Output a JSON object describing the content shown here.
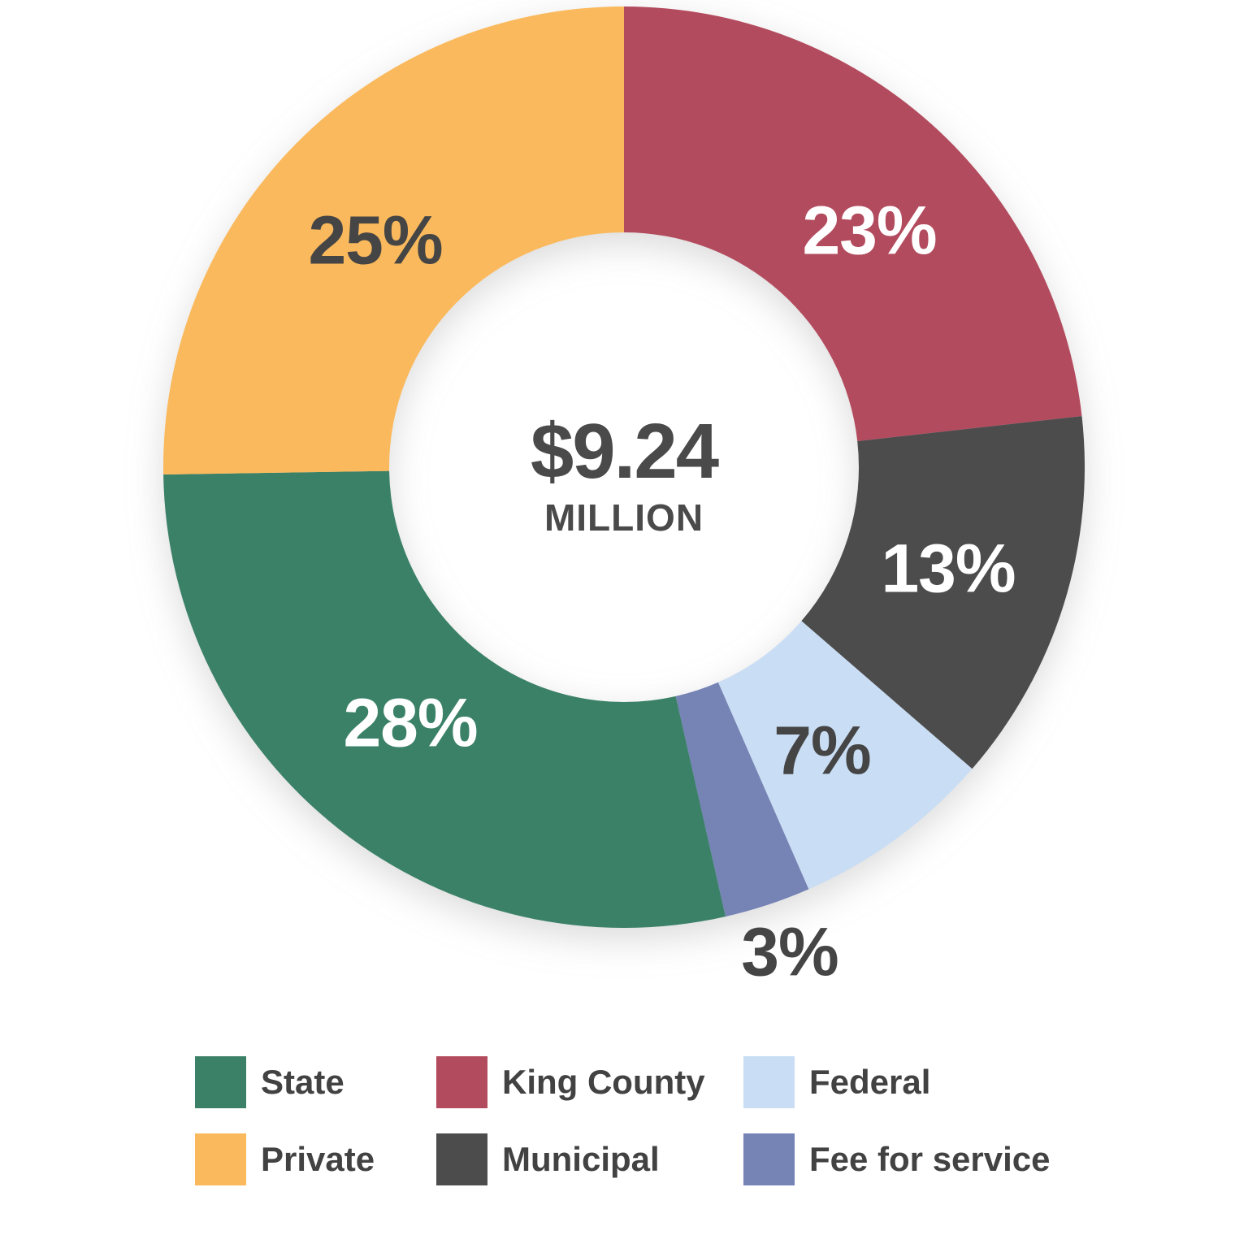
{
  "chart_data": {
    "type": "pie",
    "subtype": "donut",
    "title": "",
    "center_label": {
      "value": "$9.24",
      "unit": "MILLION"
    },
    "start_angle_deg": 0,
    "direction": "clockwise",
    "donut_hole_ratio": 0.51,
    "labels_sum_note": "printed percentages sum to 99 due to rounding; ring is drawn normalized to a full circle",
    "slices": [
      {
        "label": "King County",
        "value": 23,
        "pct_label": "23%",
        "color": "#B34B5E",
        "pct_label_color": "#FFFFFF"
      },
      {
        "label": "Municipal",
        "value": 13,
        "pct_label": "13%",
        "color": "#4C4C4C",
        "pct_label_color": "#FFFFFF"
      },
      {
        "label": "Federal",
        "value": 7,
        "pct_label": "7%",
        "color": "#C9DDF4",
        "pct_label_color": "#454545"
      },
      {
        "label": "Fee for service",
        "value": 3,
        "pct_label": "3%",
        "color": "#7583B5",
        "pct_label_color": "#454545"
      },
      {
        "label": "State",
        "value": 28,
        "pct_label": "28%",
        "color": "#3B8168",
        "pct_label_color": "#FFFFFF"
      },
      {
        "label": "Private",
        "value": 25,
        "pct_label": "25%",
        "color": "#FAB95C",
        "pct_label_color": "#454545"
      }
    ],
    "legend": {
      "position": "bottom",
      "order": [
        "State",
        "King County",
        "Federal",
        "Private",
        "Municipal",
        "Fee for service"
      ]
    },
    "text_color": "#454545",
    "background_color": "#FFFFFF"
  }
}
